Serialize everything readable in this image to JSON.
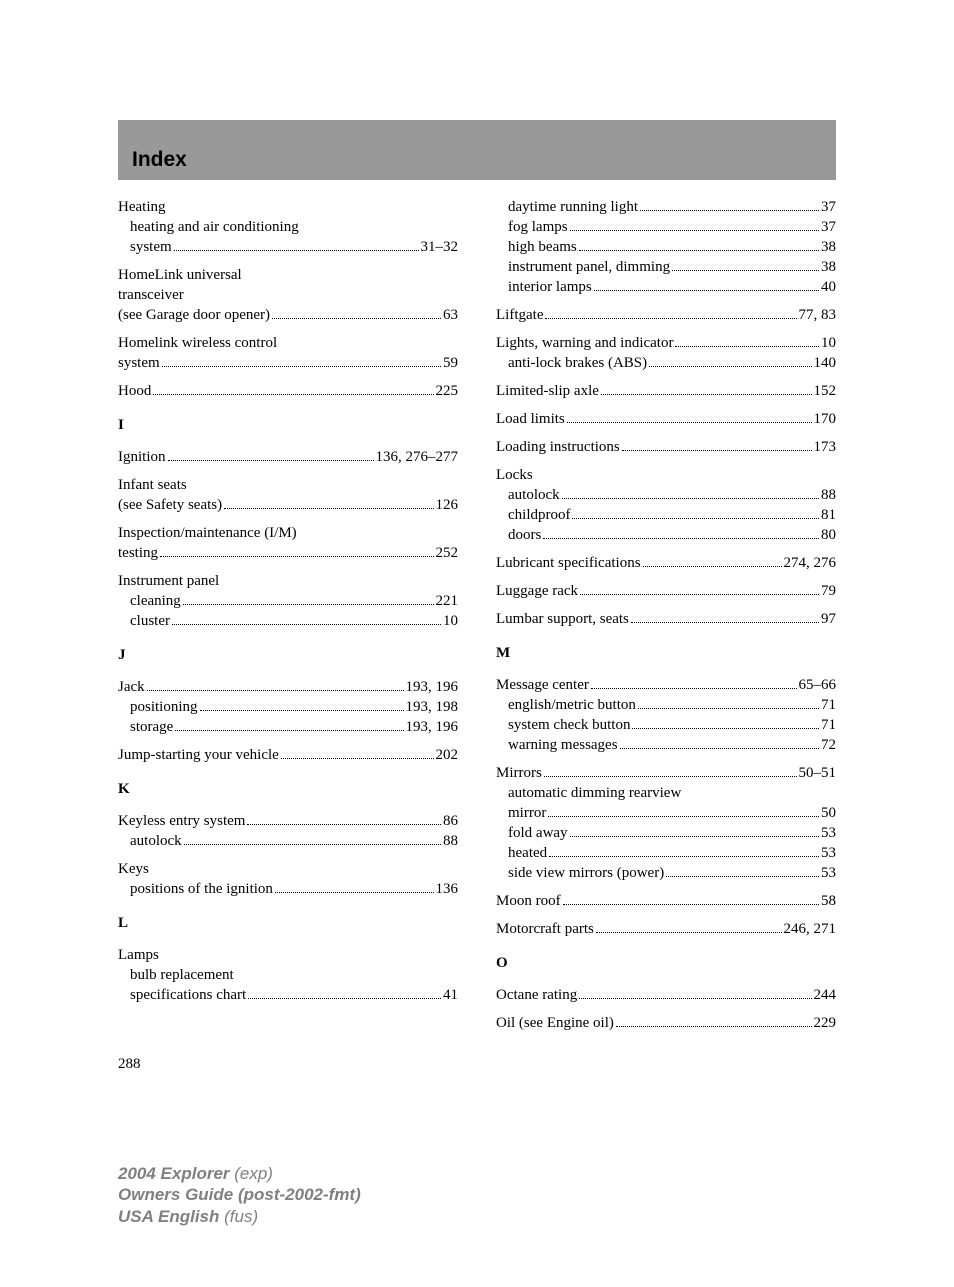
{
  "header": {
    "title": "Index"
  },
  "page_number": "288",
  "footer": {
    "line1_bold": "2004 Explorer",
    "line1_ital": " (exp)",
    "line2_bold": "Owners Guide (post-2002-fmt)",
    "line3_bold": "USA English",
    "line3_ital": " (fus)"
  },
  "left": [
    {
      "type": "plain",
      "text": "Heating"
    },
    {
      "type": "plain",
      "sub": true,
      "text": "heating and air conditioning"
    },
    {
      "type": "entry",
      "sub": true,
      "label": "system",
      "pages": "31–32"
    },
    {
      "type": "gap"
    },
    {
      "type": "plain",
      "text": "HomeLink universal"
    },
    {
      "type": "plain",
      "text": "transceiver"
    },
    {
      "type": "entry",
      "label": "(see Garage door opener)",
      "pages": "63"
    },
    {
      "type": "gap"
    },
    {
      "type": "plain",
      "text": "Homelink wireless control"
    },
    {
      "type": "entry",
      "label": "system",
      "pages": "59"
    },
    {
      "type": "gap"
    },
    {
      "type": "entry",
      "label": "Hood",
      "pages": "225"
    },
    {
      "type": "letter",
      "text": "I"
    },
    {
      "type": "entry",
      "label": "Ignition",
      "pages": "136, 276–277"
    },
    {
      "type": "gap"
    },
    {
      "type": "plain",
      "text": "Infant seats"
    },
    {
      "type": "entry",
      "label": "(see Safety seats)",
      "pages": "126"
    },
    {
      "type": "gap"
    },
    {
      "type": "plain",
      "text": "Inspection/maintenance (I/M)"
    },
    {
      "type": "entry",
      "label": "testing",
      "pages": "252"
    },
    {
      "type": "gap"
    },
    {
      "type": "plain",
      "text": "Instrument panel"
    },
    {
      "type": "entry",
      "sub": true,
      "label": "cleaning",
      "pages": "221"
    },
    {
      "type": "entry",
      "sub": true,
      "label": "cluster",
      "pages": "10"
    },
    {
      "type": "letter",
      "text": "J"
    },
    {
      "type": "entry",
      "label": "Jack",
      "pages": "193, 196"
    },
    {
      "type": "entry",
      "sub": true,
      "label": "positioning",
      "pages": "193, 198"
    },
    {
      "type": "entry",
      "sub": true,
      "label": "storage",
      "pages": "193, 196"
    },
    {
      "type": "gap"
    },
    {
      "type": "entry",
      "label": "Jump-starting your vehicle",
      "pages": "202"
    },
    {
      "type": "letter",
      "text": "K"
    },
    {
      "type": "entry",
      "label": "Keyless entry system",
      "pages": "86"
    },
    {
      "type": "entry",
      "sub": true,
      "label": "autolock",
      "pages": "88"
    },
    {
      "type": "gap"
    },
    {
      "type": "plain",
      "text": "Keys"
    },
    {
      "type": "entry",
      "sub": true,
      "label": "positions of the ignition",
      "pages": "136"
    },
    {
      "type": "letter",
      "text": "L"
    },
    {
      "type": "plain",
      "text": "Lamps"
    },
    {
      "type": "plain",
      "sub": true,
      "text": "bulb replacement"
    },
    {
      "type": "entry",
      "sub": true,
      "label": "specifications chart",
      "pages": "41"
    }
  ],
  "right": [
    {
      "type": "entry",
      "sub": true,
      "label": "daytime running light",
      "pages": "37"
    },
    {
      "type": "entry",
      "sub": true,
      "label": "fog lamps",
      "pages": "37"
    },
    {
      "type": "entry",
      "sub": true,
      "label": "high beams",
      "pages": "38"
    },
    {
      "type": "entry",
      "sub": true,
      "label": "instrument panel, dimming",
      "pages": "38"
    },
    {
      "type": "entry",
      "sub": true,
      "label": "interior lamps",
      "pages": "40"
    },
    {
      "type": "gap"
    },
    {
      "type": "entry",
      "label": "Liftgate",
      "pages": "77, 83"
    },
    {
      "type": "gap"
    },
    {
      "type": "entry",
      "label": "Lights, warning and indicator",
      "pages": "10"
    },
    {
      "type": "entry",
      "sub": true,
      "label": "anti-lock brakes (ABS)",
      "pages": "140"
    },
    {
      "type": "gap"
    },
    {
      "type": "entry",
      "label": "Limited-slip axle",
      "pages": "152"
    },
    {
      "type": "gap"
    },
    {
      "type": "entry",
      "label": "Load limits",
      "pages": "170"
    },
    {
      "type": "gap"
    },
    {
      "type": "entry",
      "label": "Loading instructions",
      "pages": "173"
    },
    {
      "type": "gap"
    },
    {
      "type": "plain",
      "text": "Locks"
    },
    {
      "type": "entry",
      "sub": true,
      "label": "autolock",
      "pages": "88"
    },
    {
      "type": "entry",
      "sub": true,
      "label": "childproof",
      "pages": "81"
    },
    {
      "type": "entry",
      "sub": true,
      "label": "doors",
      "pages": "80"
    },
    {
      "type": "gap"
    },
    {
      "type": "entry",
      "label": "Lubricant specifications",
      "pages": "274, 276"
    },
    {
      "type": "gap"
    },
    {
      "type": "entry",
      "label": "Luggage rack",
      "pages": "79"
    },
    {
      "type": "gap"
    },
    {
      "type": "entry",
      "label": "Lumbar support, seats",
      "pages": "97"
    },
    {
      "type": "letter",
      "text": "M"
    },
    {
      "type": "entry",
      "label": "Message center",
      "pages": "65–66"
    },
    {
      "type": "entry",
      "sub": true,
      "label": "english/metric button",
      "pages": "71"
    },
    {
      "type": "entry",
      "sub": true,
      "label": "system check button",
      "pages": "71"
    },
    {
      "type": "entry",
      "sub": true,
      "label": "warning messages",
      "pages": "72"
    },
    {
      "type": "gap"
    },
    {
      "type": "entry",
      "label": "Mirrors",
      "pages": "50–51"
    },
    {
      "type": "plain",
      "sub": true,
      "text": "automatic dimming rearview"
    },
    {
      "type": "entry",
      "sub": true,
      "label": "mirror",
      "pages": "50"
    },
    {
      "type": "entry",
      "sub": true,
      "label": "fold away",
      "pages": "53"
    },
    {
      "type": "entry",
      "sub": true,
      "label": "heated",
      "pages": "53"
    },
    {
      "type": "entry",
      "sub": true,
      "label": "side view mirrors (power)",
      "pages": "53"
    },
    {
      "type": "gap"
    },
    {
      "type": "entry",
      "label": "Moon roof",
      "pages": "58"
    },
    {
      "type": "gap"
    },
    {
      "type": "entry",
      "label": "Motorcraft parts",
      "pages": "246, 271"
    },
    {
      "type": "letter",
      "text": "O"
    },
    {
      "type": "entry",
      "label": "Octane rating",
      "pages": "244"
    },
    {
      "type": "gap"
    },
    {
      "type": "entry",
      "label": "Oil (see Engine oil)",
      "pages": "229"
    }
  ]
}
